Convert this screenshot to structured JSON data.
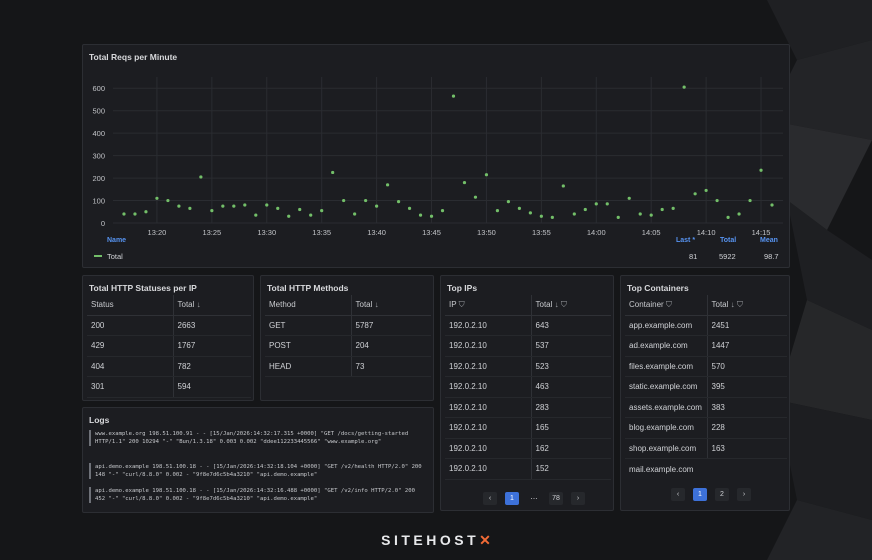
{
  "chart_panel": {
    "title": "Total Reqs per Minute",
    "legend": {
      "headers": {
        "name": "Name",
        "last": "Last *",
        "total": "Total",
        "mean": "Mean"
      },
      "series_name": "Total",
      "last": "81",
      "total": "5922",
      "mean": "98.7"
    }
  },
  "chart_data": {
    "type": "scatter",
    "title": "Total Reqs per Minute",
    "xlabel": "",
    "ylabel": "",
    "ylim": [
      0,
      650
    ],
    "yticks": [
      "0",
      "100",
      "200",
      "300",
      "400",
      "500",
      "600"
    ],
    "xticks": [
      "13:20",
      "13:25",
      "13:30",
      "13:35",
      "13:40",
      "13:45",
      "13:50",
      "13:55",
      "14:00",
      "14:05",
      "14:10",
      "14:15"
    ],
    "grid": true,
    "color": "#73bf69",
    "series": [
      {
        "name": "Total",
        "x": [
          "13:17",
          "13:18",
          "13:19",
          "13:20",
          "13:21",
          "13:22",
          "13:23",
          "13:24",
          "13:25",
          "13:26",
          "13:27",
          "13:28",
          "13:29",
          "13:30",
          "13:31",
          "13:32",
          "13:33",
          "13:34",
          "13:35",
          "13:36",
          "13:37",
          "13:38",
          "13:39",
          "13:40",
          "13:41",
          "13:42",
          "13:43",
          "13:44",
          "13:45",
          "13:46",
          "13:47",
          "13:48",
          "13:49",
          "13:50",
          "13:51",
          "13:52",
          "13:53",
          "13:54",
          "13:55",
          "13:56",
          "13:57",
          "13:58",
          "13:59",
          "14:00",
          "14:01",
          "14:02",
          "14:03",
          "14:04",
          "14:05",
          "14:06",
          "14:07",
          "14:08",
          "14:09",
          "14:10",
          "14:11",
          "14:12",
          "14:13",
          "14:14",
          "14:15",
          "14:16"
        ],
        "y": [
          40,
          40,
          50,
          110,
          100,
          75,
          65,
          205,
          55,
          75,
          75,
          80,
          35,
          80,
          65,
          30,
          60,
          35,
          55,
          225,
          100,
          40,
          100,
          75,
          170,
          95,
          65,
          35,
          30,
          55,
          565,
          180,
          115,
          215,
          55,
          95,
          65,
          45,
          30,
          25,
          165,
          40,
          60,
          85,
          85,
          25,
          110,
          40,
          35,
          60,
          65,
          605,
          130,
          145,
          100,
          25,
          40,
          100,
          235,
          80
        ]
      }
    ]
  },
  "status_panel": {
    "title": "Total HTTP Statuses per IP",
    "headers": [
      "Status",
      "Total"
    ],
    "rows": [
      [
        "200",
        "2663"
      ],
      [
        "429",
        "1767"
      ],
      [
        "404",
        "782"
      ],
      [
        "301",
        "594"
      ]
    ]
  },
  "methods_panel": {
    "title": "Total HTTP Methods",
    "headers": [
      "Method",
      "Total"
    ],
    "rows": [
      [
        "GET",
        "5787"
      ],
      [
        "POST",
        "204"
      ],
      [
        "HEAD",
        "73"
      ]
    ]
  },
  "ips_panel": {
    "title": "Top IPs",
    "headers": [
      "IP",
      "Total"
    ],
    "rows": [
      [
        "192.0.2.10",
        "643"
      ],
      [
        "192.0.2.10",
        "537"
      ],
      [
        "192.0.2.10",
        "523"
      ],
      [
        "192.0.2.10",
        "463"
      ],
      [
        "192.0.2.10",
        "283"
      ],
      [
        "192.0.2.10",
        "165"
      ],
      [
        "192.0.2.10",
        "162"
      ],
      [
        "192.0.2.10",
        "152"
      ]
    ],
    "pager": {
      "prev": "‹",
      "page1": "1",
      "dots": "⋯",
      "last": "78",
      "next": "›"
    }
  },
  "containers_panel": {
    "title": "Top Containers",
    "headers": [
      "Container",
      "Total"
    ],
    "rows": [
      [
        "app.example.com",
        "2451"
      ],
      [
        "ad.example.com",
        "1447"
      ],
      [
        "files.example.com",
        "570"
      ],
      [
        "static.example.com",
        "395"
      ],
      [
        "assets.example.com",
        "383"
      ],
      [
        "blog.example.com",
        "228"
      ],
      [
        "shop.example.com",
        "163"
      ],
      [
        "mail.example.com",
        ""
      ]
    ],
    "pager": {
      "prev": "‹",
      "page1": "1",
      "page2": "2",
      "next": "›"
    }
  },
  "logs_panel": {
    "title": "Logs",
    "lines": [
      "www.example.org 198.51.100.91 - - [15/Jan/2026:14:32:17.315 +0000] \"GET /docs/getting-started HTTP/1.1\" 200 10294 \"-\" \"Bun/1.3.18\" 0.003 0.002 \"ddee112233445566\" \"www.example.org\"",
      "api.demo.example 198.51.100.18 - - [15/Jan/2026:14:32:18.104 +0000] \"GET /v2/health HTTP/2.0\" 200 148 \"-\" \"curl/8.8.0\" 0.002 - \"9f8e7d6c5b4a3210\" \"api.demo.example\"",
      "api.demo.example 198.51.100.18 - - [15/Jan/2026:14:32:16.488 +0000] \"GET /v2/info HTTP/2.0\" 200 452 \"-\" \"curl/8.8.0\" 0.002 - \"9f8e7d6c5b4a3210\" \"api.demo.example\""
    ]
  },
  "footer": {
    "brand": "SITEHOST",
    "mark": "✕"
  },
  "icons": {
    "sort": "sort-desc-icon",
    "filter": "filter-icon"
  }
}
